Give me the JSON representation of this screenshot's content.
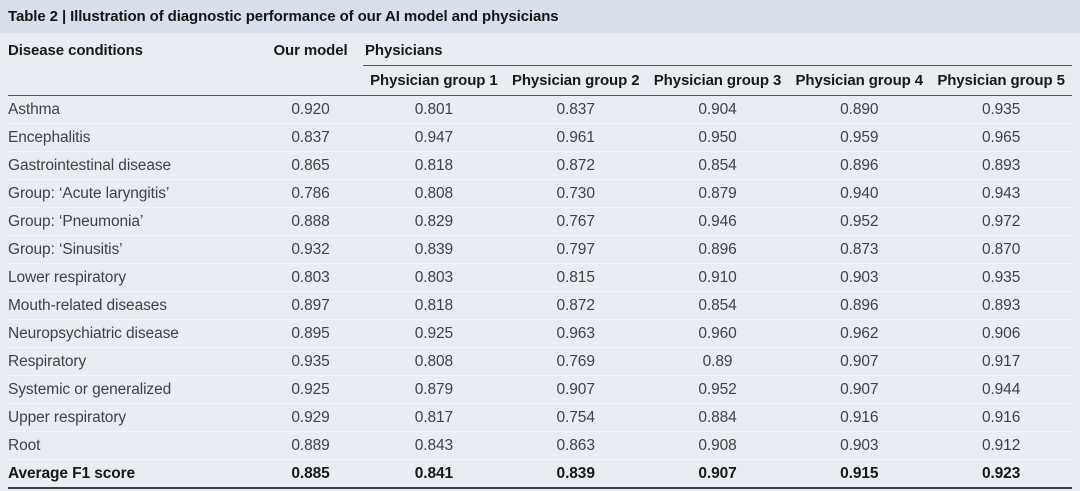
{
  "title": "Table 2 | Illustration of diagnostic performance of our AI model and physicians",
  "table": {
    "headers": {
      "disease": "Disease conditions",
      "our_model": "Our model",
      "physicians_group": "Physicians",
      "physician_groups": [
        "Physician group 1",
        "Physician group 2",
        "Physician group 3",
        "Physician group 4",
        "Physician group 5"
      ]
    },
    "rows": [
      {
        "condition": "Asthma",
        "our_model": "0.920",
        "groups": [
          "0.801",
          "0.837",
          "0.904",
          "0.890",
          "0.935"
        ]
      },
      {
        "condition": "Encephalitis",
        "our_model": "0.837",
        "groups": [
          "0.947",
          "0.961",
          "0.950",
          "0.959",
          "0.965"
        ]
      },
      {
        "condition": "Gastrointestinal disease",
        "our_model": "0.865",
        "groups": [
          "0.818",
          "0.872",
          "0.854",
          "0.896",
          "0.893"
        ]
      },
      {
        "condition": "Group: ‘Acute laryngitis’",
        "our_model": "0.786",
        "groups": [
          "0.808",
          "0.730",
          "0.879",
          "0.940",
          "0.943"
        ]
      },
      {
        "condition": "Group: ‘Pneumonia’",
        "our_model": "0.888",
        "groups": [
          "0.829",
          "0.767",
          "0.946",
          "0.952",
          "0.972"
        ]
      },
      {
        "condition": "Group: ‘Sinusitis’",
        "our_model": "0.932",
        "groups": [
          "0.839",
          "0.797",
          "0.896",
          "0.873",
          "0.870"
        ]
      },
      {
        "condition": "Lower respiratory",
        "our_model": "0.803",
        "groups": [
          "0.803",
          "0.815",
          "0.910",
          "0.903",
          "0.935"
        ]
      },
      {
        "condition": "Mouth-related diseases",
        "our_model": "0.897",
        "groups": [
          "0.818",
          "0.872",
          "0.854",
          "0.896",
          "0.893"
        ]
      },
      {
        "condition": "Neuropsychiatric disease",
        "our_model": "0.895",
        "groups": [
          "0.925",
          "0.963",
          "0.960",
          "0.962",
          "0.906"
        ]
      },
      {
        "condition": "Respiratory",
        "our_model": "0.935",
        "groups": [
          "0.808",
          "0.769",
          "0.89",
          "0.907",
          "0.917"
        ]
      },
      {
        "condition": "Systemic or generalized",
        "our_model": "0.925",
        "groups": [
          "0.879",
          "0.907",
          "0.952",
          "0.907",
          "0.944"
        ]
      },
      {
        "condition": "Upper respiratory",
        "our_model": "0.929",
        "groups": [
          "0.817",
          "0.754",
          "0.884",
          "0.916",
          "0.916"
        ]
      },
      {
        "condition": "Root",
        "our_model": "0.889",
        "groups": [
          "0.843",
          "0.863",
          "0.908",
          "0.903",
          "0.912"
        ]
      }
    ],
    "average_row": {
      "condition": "Average F1 score",
      "our_model": "0.885",
      "groups": [
        "0.841",
        "0.839",
        "0.907",
        "0.915",
        "0.923"
      ]
    }
  },
  "chart_data": {
    "type": "table",
    "title": "Table 2 | Illustration of diagnostic performance of our AI model and physicians",
    "columns": [
      "Disease conditions",
      "Our model",
      "Physician group 1",
      "Physician group 2",
      "Physician group 3",
      "Physician group 4",
      "Physician group 5"
    ],
    "rows": [
      [
        "Asthma",
        0.92,
        0.801,
        0.837,
        0.904,
        0.89,
        0.935
      ],
      [
        "Encephalitis",
        0.837,
        0.947,
        0.961,
        0.95,
        0.959,
        0.965
      ],
      [
        "Gastrointestinal disease",
        0.865,
        0.818,
        0.872,
        0.854,
        0.896,
        0.893
      ],
      [
        "Group: ‘Acute laryngitis’",
        0.786,
        0.808,
        0.73,
        0.879,
        0.94,
        0.943
      ],
      [
        "Group: ‘Pneumonia’",
        0.888,
        0.829,
        0.767,
        0.946,
        0.952,
        0.972
      ],
      [
        "Group: ‘Sinusitis’",
        0.932,
        0.839,
        0.797,
        0.896,
        0.873,
        0.87
      ],
      [
        "Lower respiratory",
        0.803,
        0.803,
        0.815,
        0.91,
        0.903,
        0.935
      ],
      [
        "Mouth-related diseases",
        0.897,
        0.818,
        0.872,
        0.854,
        0.896,
        0.893
      ],
      [
        "Neuropsychiatric disease",
        0.895,
        0.925,
        0.963,
        0.96,
        0.962,
        0.906
      ],
      [
        "Respiratory",
        0.935,
        0.808,
        0.769,
        0.89,
        0.907,
        0.917
      ],
      [
        "Systemic or generalized",
        0.925,
        0.879,
        0.907,
        0.952,
        0.907,
        0.944
      ],
      [
        "Upper respiratory",
        0.929,
        0.817,
        0.754,
        0.884,
        0.916,
        0.916
      ],
      [
        "Root",
        0.889,
        0.843,
        0.863,
        0.908,
        0.903,
        0.912
      ],
      [
        "Average F1 score",
        0.885,
        0.841,
        0.839,
        0.907,
        0.915,
        0.923
      ]
    ]
  },
  "colors": {
    "title_band_bg": "#d9dfe8",
    "table_bg": "#e9edf2",
    "rule_dark": "#53575c",
    "rule_bottom": "#3a3e43",
    "row_separator": "#f3f6f9",
    "text_header": "#17191b",
    "text_body": "#3e4246"
  }
}
